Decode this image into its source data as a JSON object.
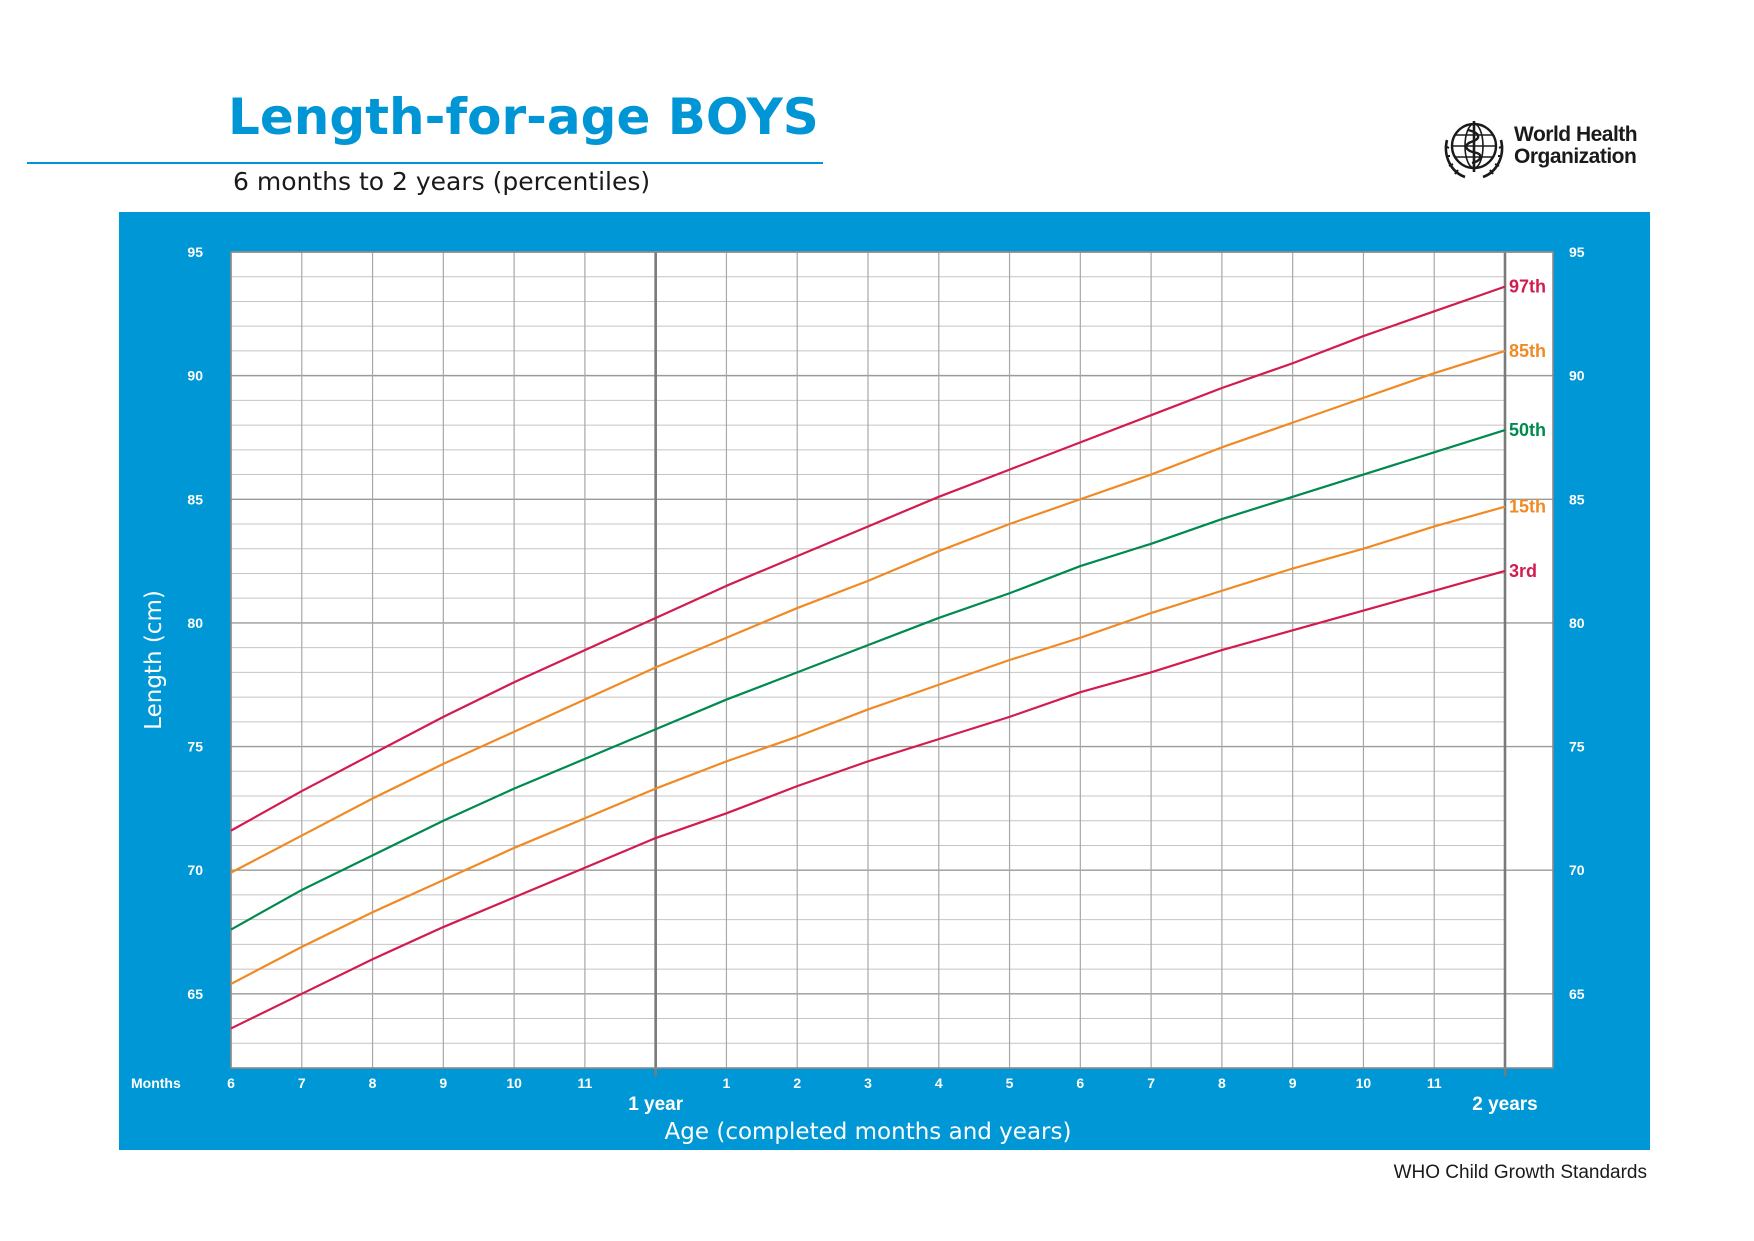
{
  "title": "Length-for-age BOYS",
  "subtitle": "6 months to 2 years (percentiles)",
  "logo": {
    "icon": "who-emblem-icon",
    "line1": "World Health",
    "line2": "Organization"
  },
  "footer": "WHO Child Growth Standards",
  "colors": {
    "brand": "#0096d6",
    "panel": "#0097d6",
    "red": "#d21c50",
    "orange": "#f08a24",
    "green": "#008a4e"
  },
  "chart_data": {
    "type": "line",
    "title": "Length-for-age BOYS",
    "subtitle": "6 months to 2 years (percentiles)",
    "xlabel": "Age (completed months and years)",
    "ylabel": "Length (cm)",
    "x_unit_label": "Months",
    "xlim": [
      6,
      24
    ],
    "ylim": [
      62,
      95
    ],
    "y_ticks": [
      65,
      70,
      75,
      80,
      85,
      90,
      95
    ],
    "x_ticks": [
      6,
      7,
      8,
      9,
      10,
      11,
      12,
      13,
      14,
      15,
      16,
      17,
      18,
      19,
      20,
      21,
      22,
      23,
      24
    ],
    "x_tick_labels": [
      "6",
      "7",
      "8",
      "9",
      "10",
      "11",
      "",
      "1",
      "2",
      "3",
      "4",
      "5",
      "6",
      "7",
      "8",
      "9",
      "10",
      "11",
      ""
    ],
    "year_markers": [
      {
        "x": 12,
        "label": "1 year"
      },
      {
        "x": 24,
        "label": "2 years"
      }
    ],
    "grid": true,
    "x": [
      6,
      7,
      8,
      9,
      10,
      11,
      12,
      13,
      14,
      15,
      16,
      17,
      18,
      19,
      20,
      21,
      22,
      23,
      24
    ],
    "series": [
      {
        "name": "97th",
        "color": "#d21c50",
        "values": [
          71.6,
          73.2,
          74.7,
          76.2,
          77.6,
          78.9,
          80.2,
          81.5,
          82.7,
          83.9,
          85.1,
          86.2,
          87.3,
          88.4,
          89.5,
          90.5,
          91.6,
          92.6,
          93.6
        ]
      },
      {
        "name": "85th",
        "color": "#f08a24",
        "values": [
          69.9,
          71.4,
          72.9,
          74.3,
          75.6,
          76.9,
          78.2,
          79.4,
          80.6,
          81.7,
          82.9,
          84.0,
          85.0,
          86.0,
          87.1,
          88.1,
          89.1,
          90.1,
          91.0
        ]
      },
      {
        "name": "50th",
        "color": "#008a4e",
        "values": [
          67.6,
          69.2,
          70.6,
          72.0,
          73.3,
          74.5,
          75.7,
          76.9,
          78.0,
          79.1,
          80.2,
          81.2,
          82.3,
          83.2,
          84.2,
          85.1,
          86.0,
          86.9,
          87.8
        ]
      },
      {
        "name": "15th",
        "color": "#f08a24",
        "values": [
          65.4,
          66.9,
          68.3,
          69.6,
          70.9,
          72.1,
          73.3,
          74.4,
          75.4,
          76.5,
          77.5,
          78.5,
          79.4,
          80.4,
          81.3,
          82.2,
          83.0,
          83.9,
          84.7
        ]
      },
      {
        "name": "3rd",
        "color": "#d21c50",
        "values": [
          63.6,
          65.0,
          66.4,
          67.7,
          68.9,
          70.1,
          71.3,
          72.3,
          73.4,
          74.4,
          75.3,
          76.2,
          77.2,
          78.0,
          78.9,
          79.7,
          80.5,
          81.3,
          82.1
        ]
      }
    ]
  }
}
